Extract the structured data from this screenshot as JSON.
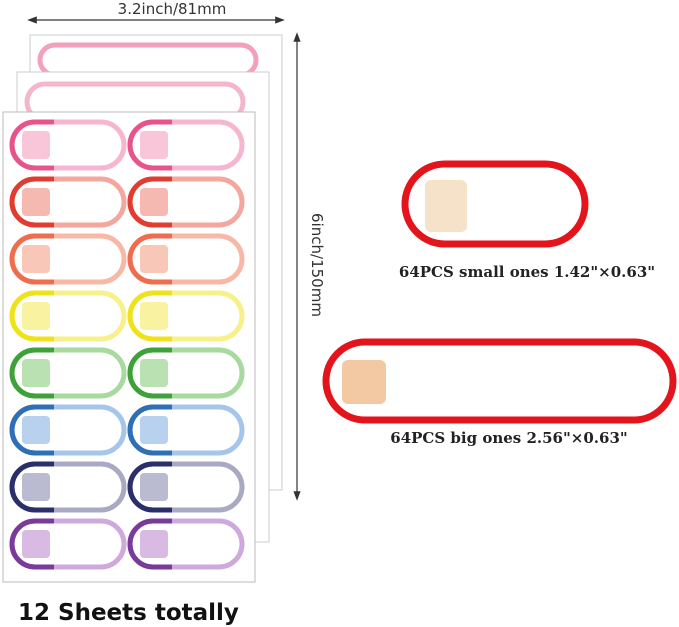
{
  "dimensions": {
    "width": "3.2inch/81mm",
    "height": "6inch/150mm"
  },
  "samples": [
    {
      "caption": "64PCS small ones 1.42\"×0.63\""
    },
    {
      "caption": "64PCS big ones 2.56\"×0.63\""
    }
  ],
  "footer": "12 Sheets totally"
}
